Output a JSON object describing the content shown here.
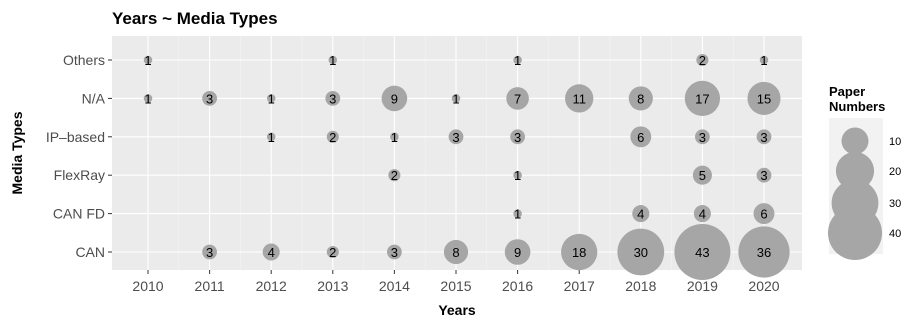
{
  "chart_data": {
    "type": "scatter",
    "title": "Years ~ Media Types",
    "xlabel": "Years",
    "ylabel": "Media Types",
    "x_categories": [
      "2010",
      "2011",
      "2012",
      "2013",
      "2014",
      "2015",
      "2016",
      "2017",
      "2018",
      "2019",
      "2020"
    ],
    "y_categories": [
      "CAN",
      "CAN FD",
      "FlexRay",
      "IP–based",
      "N/A",
      "Others"
    ],
    "size_legend": {
      "title_line1": "Paper",
      "title_line2": "Numbers",
      "values": [
        10,
        20,
        30,
        40
      ],
      "labels": [
        "10",
        "20",
        "30",
        "40"
      ]
    },
    "grid": true,
    "legend_position": "right",
    "colors": {
      "bubble": "#a6a6a6",
      "panel": "#ebebeb",
      "grid": "#ffffff"
    },
    "points": [
      {
        "x": "2010",
        "y": "Others",
        "value": 1
      },
      {
        "x": "2013",
        "y": "Others",
        "value": 1
      },
      {
        "x": "2016",
        "y": "Others",
        "value": 1
      },
      {
        "x": "2019",
        "y": "Others",
        "value": 2
      },
      {
        "x": "2020",
        "y": "Others",
        "value": 1
      },
      {
        "x": "2010",
        "y": "N/A",
        "value": 1
      },
      {
        "x": "2011",
        "y": "N/A",
        "value": 3
      },
      {
        "x": "2012",
        "y": "N/A",
        "value": 1
      },
      {
        "x": "2013",
        "y": "N/A",
        "value": 3
      },
      {
        "x": "2014",
        "y": "N/A",
        "value": 9
      },
      {
        "x": "2015",
        "y": "N/A",
        "value": 1
      },
      {
        "x": "2016",
        "y": "N/A",
        "value": 7
      },
      {
        "x": "2017",
        "y": "N/A",
        "value": 11
      },
      {
        "x": "2018",
        "y": "N/A",
        "value": 8
      },
      {
        "x": "2019",
        "y": "N/A",
        "value": 17
      },
      {
        "x": "2020",
        "y": "N/A",
        "value": 15
      },
      {
        "x": "2012",
        "y": "IP–based",
        "value": 1
      },
      {
        "x": "2013",
        "y": "IP–based",
        "value": 2
      },
      {
        "x": "2014",
        "y": "IP–based",
        "value": 1
      },
      {
        "x": "2015",
        "y": "IP–based",
        "value": 3
      },
      {
        "x": "2016",
        "y": "IP–based",
        "value": 3
      },
      {
        "x": "2018",
        "y": "IP–based",
        "value": 6
      },
      {
        "x": "2019",
        "y": "IP–based",
        "value": 3
      },
      {
        "x": "2020",
        "y": "IP–based",
        "value": 3
      },
      {
        "x": "2014",
        "y": "FlexRay",
        "value": 2
      },
      {
        "x": "2016",
        "y": "FlexRay",
        "value": 1
      },
      {
        "x": "2019",
        "y": "FlexRay",
        "value": 5
      },
      {
        "x": "2020",
        "y": "FlexRay",
        "value": 3
      },
      {
        "x": "2016",
        "y": "CAN FD",
        "value": 1
      },
      {
        "x": "2018",
        "y": "CAN FD",
        "value": 4
      },
      {
        "x": "2019",
        "y": "CAN FD",
        "value": 4
      },
      {
        "x": "2020",
        "y": "CAN FD",
        "value": 6
      },
      {
        "x": "2011",
        "y": "CAN",
        "value": 3
      },
      {
        "x": "2012",
        "y": "CAN",
        "value": 4
      },
      {
        "x": "2013",
        "y": "CAN",
        "value": 2
      },
      {
        "x": "2014",
        "y": "CAN",
        "value": 3
      },
      {
        "x": "2015",
        "y": "CAN",
        "value": 8
      },
      {
        "x": "2016",
        "y": "CAN",
        "value": 9
      },
      {
        "x": "2017",
        "y": "CAN",
        "value": 18
      },
      {
        "x": "2018",
        "y": "CAN",
        "value": 30
      },
      {
        "x": "2019",
        "y": "CAN",
        "value": 43
      },
      {
        "x": "2020",
        "y": "CAN",
        "value": 36
      }
    ]
  }
}
